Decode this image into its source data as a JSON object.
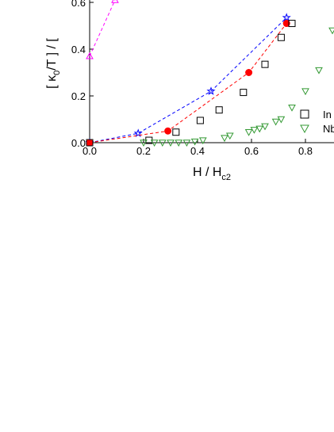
{
  "chart_data": {
    "type": "scatter",
    "xlabel": {
      "main": "H / H",
      "sub": "c2"
    },
    "ylabel": {
      "main": "[ κ",
      "sub": "0",
      "rest": "/T ] / ["
    },
    "xlim": [
      0,
      0.9
    ],
    "ylim": [
      0,
      0.6
    ],
    "xticks": [
      {
        "value": 0,
        "label": "0.0"
      },
      {
        "value": 0.2,
        "label": "0.2"
      },
      {
        "value": 0.4,
        "label": "0.4"
      },
      {
        "value": 0.6,
        "label": "0.6"
      },
      {
        "value": 0.8,
        "label": "0.8"
      }
    ],
    "yticks": [
      {
        "value": 0,
        "label": "0.0"
      },
      {
        "value": 0.2,
        "label": "0.2"
      },
      {
        "value": 0.4,
        "label": "0.4"
      },
      {
        "value": 0.6,
        "label": "0.6"
      }
    ],
    "series": [
      {
        "color": "#ff00ff",
        "marker": "triangle-up",
        "line": "dashed",
        "x": [
          0,
          0.094
        ],
        "values": [
          0.37,
          0.61
        ]
      },
      {
        "color": "#0000ff",
        "marker": "star",
        "line": "dashed",
        "x": [
          0,
          0.18,
          0.45,
          0.73
        ],
        "values": [
          0,
          0.04,
          0.22,
          0.535
        ]
      },
      {
        "color": "#ff0000",
        "marker": "circle",
        "line": "dashed",
        "x": [
          0,
          0.29,
          0.59,
          0.73
        ],
        "values": [
          0,
          0.05,
          0.3,
          0.51
        ]
      },
      {
        "name": "In",
        "color": "#000000",
        "marker": "square",
        "x": [
          0,
          0.22,
          0.32,
          0.41,
          0.48,
          0.57,
          0.65,
          0.71,
          0.75
        ],
        "values": [
          0,
          0.01,
          0.045,
          0.095,
          0.14,
          0.215,
          0.335,
          0.45,
          0.51
        ]
      },
      {
        "name": "Nb",
        "color": "#339933",
        "marker": "triangle-down",
        "x": [
          0.2,
          0.24,
          0.27,
          0.3,
          0.33,
          0.36,
          0.39,
          0.42,
          0.5,
          0.52,
          0.59,
          0.61,
          0.63,
          0.65,
          0.69,
          0.71,
          0.75,
          0.8,
          0.85,
          0.9
        ],
        "values": [
          0,
          0,
          0,
          0,
          0,
          0,
          0.005,
          0.01,
          0.02,
          0.03,
          0.045,
          0.055,
          0.06,
          0.07,
          0.09,
          0.1,
          0.15,
          0.22,
          0.31,
          0.48
        ]
      }
    ]
  }
}
